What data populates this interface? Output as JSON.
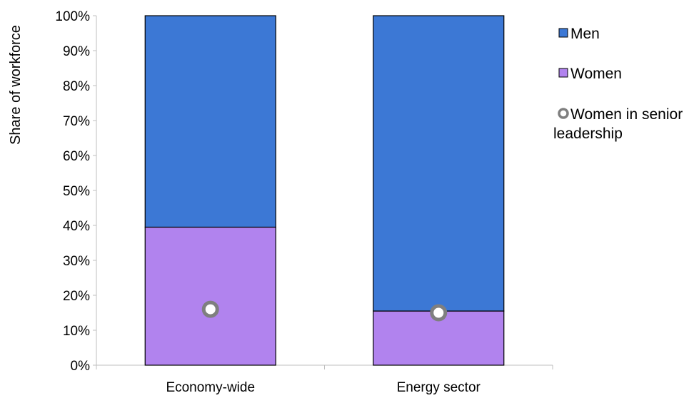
{
  "chart_data": {
    "type": "bar",
    "stacked": true,
    "categories": [
      "Economy-wide",
      "Energy sector"
    ],
    "series": [
      {
        "name": "Women",
        "values": [
          39.5,
          15.5
        ],
        "color": "#b183ee"
      },
      {
        "name": "Men",
        "values": [
          60.5,
          84.5
        ],
        "color": "#3c78d5"
      }
    ],
    "overlay": {
      "name": "Women in senior leadership",
      "values": [
        16,
        15
      ],
      "color": "#7f7f7f"
    },
    "ylabel": "Share of workforce",
    "xlabel": "",
    "ylim": [
      0,
      100
    ],
    "yticks": [
      "0%",
      "10%",
      "20%",
      "30%",
      "40%",
      "50%",
      "60%",
      "70%",
      "80%",
      "90%",
      "100%"
    ],
    "grid": false,
    "legend_position": "right",
    "legend": [
      {
        "label": "Men",
        "marker": "square",
        "color": "#3c78d5"
      },
      {
        "label": "Women",
        "marker": "square",
        "color": "#b183ee"
      },
      {
        "label_lines": [
          "Women in senior",
          "leadership"
        ],
        "marker": "ring",
        "color": "#7f7f7f"
      }
    ]
  }
}
